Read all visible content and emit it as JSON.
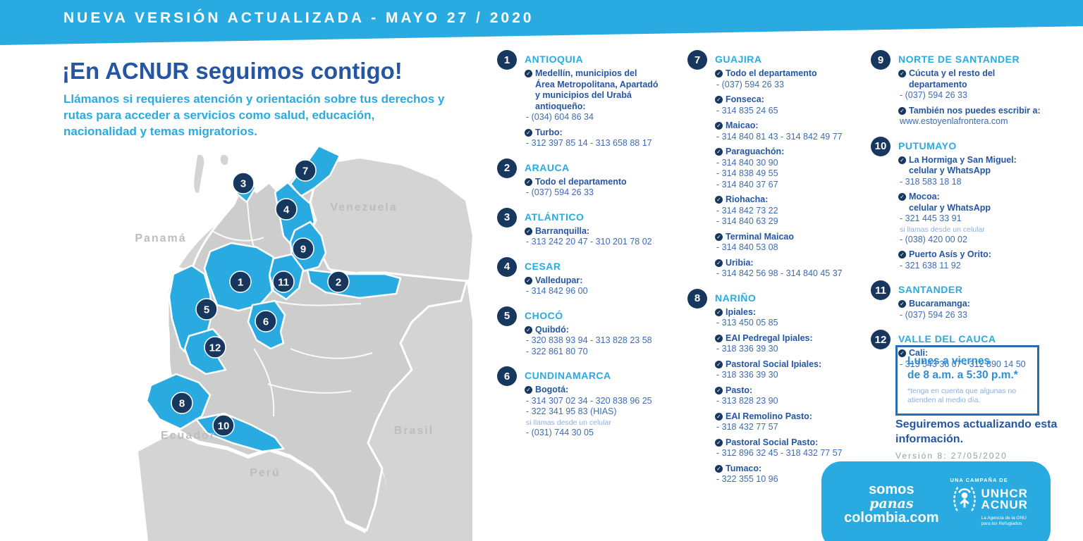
{
  "banner": {
    "text": "NUEVA VERSIÓN ACTUALIZADA - MAYO 27 / 2020"
  },
  "intro": {
    "title": "¡En ACNUR seguimos contigo!",
    "description": "Llámanos si requieres atención y orientación sobre tus derechos y rutas para acceder a servicios como salud, educación, nacionalidad y temas migratorios."
  },
  "map": {
    "country_labels": [
      "Panamá",
      "Venezuela",
      "Ecuador",
      "Perú",
      "Brasil"
    ],
    "markers": [
      "1",
      "2",
      "3",
      "4",
      "5",
      "6",
      "7",
      "8",
      "9",
      "10",
      "11",
      "12"
    ]
  },
  "directory": {
    "columns": [
      [
        {
          "num": "1",
          "name": "ANTIOQUIA",
          "entries": [
            {
              "place": "Medellín, municipios del\nÁrea Metropolitana, Apartadó\ny municipios del Urabá antioqueño:",
              "lines": [
                {
                  "text": "- (034) 604 86 34",
                  "style": "phone"
                }
              ]
            },
            {
              "place": "Turbo:",
              "lines": [
                {
                  "text": "- 312 397 85 14  - 313 658 88 17",
                  "style": "phone"
                }
              ]
            }
          ]
        },
        {
          "num": "2",
          "name": "ARAUCA",
          "entries": [
            {
              "place": "Todo el departamento",
              "lines": [
                {
                  "text": "- (037) 594 26 33",
                  "style": "phone"
                }
              ]
            }
          ]
        },
        {
          "num": "3",
          "name": "ATLÁNTICO",
          "entries": [
            {
              "place": "Barranquilla:",
              "lines": [
                {
                  "text": "- 313 242 20 47 - 310 201 78 02",
                  "style": "phone"
                }
              ]
            }
          ]
        },
        {
          "num": "4",
          "name": "CESAR",
          "entries": [
            {
              "place": "Valledupar:",
              "lines": [
                {
                  "text": "- 314 842 96 00",
                  "style": "phone"
                }
              ]
            }
          ]
        },
        {
          "num": "5",
          "name": "CHOCÓ",
          "entries": [
            {
              "place": "Quibdó:",
              "lines": [
                {
                  "text": "- 320 838 93 94 - 313 828 23 58",
                  "style": "phone"
                },
                {
                  "text": "- 322 861 80 70",
                  "style": "phone"
                }
              ]
            }
          ]
        },
        {
          "num": "6",
          "name": "CUNDINAMARCA",
          "entries": [
            {
              "place": "Bogotá:",
              "lines": [
                {
                  "text": "- 314 307 02 34 - 320 838 96 25",
                  "style": "phone"
                },
                {
                  "text": "- 322 341 95 83 (HIAS)",
                  "style": "phone"
                },
                {
                  "text": "si llamas desde un celular",
                  "style": "note"
                },
                {
                  "text": "- (031) 744 30 05",
                  "style": "phone"
                }
              ]
            }
          ]
        }
      ],
      [
        {
          "num": "7",
          "name": "GUAJIRA",
          "entries": [
            {
              "place": "Todo el departamento",
              "lines": [
                {
                  "text": "- (037) 594 26 33",
                  "style": "phone"
                }
              ]
            },
            {
              "place": "Fonseca:",
              "lines": [
                {
                  "text": "- 314 835 24 65",
                  "style": "phone"
                }
              ]
            },
            {
              "place": "Maicao:",
              "lines": [
                {
                  "text": "- 314 840 81 43 - 314 842 49 77",
                  "style": "phone"
                }
              ]
            },
            {
              "place": "Paraguachón:",
              "lines": [
                {
                  "text": "- 314 840 30 90",
                  "style": "phone"
                },
                {
                  "text": "- 314 838 49 55",
                  "style": "phone"
                },
                {
                  "text": "- 314 840 37 67",
                  "style": "phone"
                }
              ]
            },
            {
              "place": "Riohacha:",
              "lines": [
                {
                  "text": "- 314 842 73 22",
                  "style": "phone"
                },
                {
                  "text": "- 314 840 63 29",
                  "style": "phone"
                }
              ]
            },
            {
              "place": "Terminal Maicao",
              "lines": [
                {
                  "text": "- 314 840 53 08",
                  "style": "phone"
                }
              ]
            },
            {
              "place": "Uribia:",
              "lines": [
                {
                  "text": "- 314 842 56 98 - 314 840 45 37",
                  "style": "phone"
                }
              ]
            }
          ]
        },
        {
          "num": "8",
          "name": "NARIÑO",
          "entries": [
            {
              "place": "Ipiales:",
              "lines": [
                {
                  "text": "- 313 450 05 85",
                  "style": "phone"
                }
              ]
            },
            {
              "place": "EAI Pedregal Ipiales:",
              "lines": [
                {
                  "text": "- 318 336 39 30",
                  "style": "phone"
                }
              ]
            },
            {
              "place": "Pastoral Social Ipiales:",
              "lines": [
                {
                  "text": "- 318 336 39 30",
                  "style": "phone"
                }
              ]
            },
            {
              "place": "Pasto:",
              "lines": [
                {
                  "text": "- 313 828 23 90",
                  "style": "phone"
                }
              ]
            },
            {
              "place": "EAI Remolino Pasto:",
              "lines": [
                {
                  "text": "- 318 432 77 57",
                  "style": "phone"
                }
              ]
            },
            {
              "place": "Pastoral Social Pasto:",
              "lines": [
                {
                  "text": "- 312 896 32 45 - 318 432 77 57",
                  "style": "phone"
                }
              ]
            },
            {
              "place": "Tumaco:",
              "lines": [
                {
                  "text": "- 322 355 10 96",
                  "style": "phone"
                }
              ]
            }
          ]
        }
      ],
      [
        {
          "num": "9",
          "name": "NORTE DE SANTANDER",
          "entries": [
            {
              "place": "Cúcuta y el resto del departamento",
              "lines": [
                {
                  "text": "- (037) 594 26 33",
                  "style": "phone"
                }
              ]
            },
            {
              "place": "También nos puedes escribir a:",
              "lines": [
                {
                  "text": "www.estoyenlafrontera.com",
                  "style": "link"
                }
              ]
            }
          ]
        },
        {
          "num": "10",
          "name": "PUTUMAYO",
          "entries": [
            {
              "place": "La Hormiga y San Miguel:\ncelular y WhatsApp",
              "lines": [
                {
                  "text": "- 318 583 18 18",
                  "style": "phone"
                }
              ]
            },
            {
              "place": "Mocoa:\ncelular y WhatsApp",
              "lines": [
                {
                  "text": "- 321 445 33 91",
                  "style": "phone"
                },
                {
                  "text": "si llamas desde un celular",
                  "style": "note"
                },
                {
                  "text": "- (038) 420 00 02",
                  "style": "phone"
                }
              ]
            },
            {
              "place": "Puerto Asís y Orito:",
              "lines": [
                {
                  "text": "- 321 638 11 92",
                  "style": "phone"
                }
              ]
            }
          ]
        },
        {
          "num": "11",
          "name": "SANTANDER",
          "entries": [
            {
              "place": "Bucaramanga:",
              "lines": [
                {
                  "text": "- (037) 594 26 33",
                  "style": "phone"
                }
              ]
            }
          ]
        },
        {
          "num": "12",
          "name": "VALLE DEL CAUCA",
          "entries": [
            {
              "place": "Cali:",
              "lines": [
                {
                  "text": "- 313 543 36 07 - 312 890 14 50",
                  "style": "phone"
                }
              ]
            }
          ]
        }
      ]
    ]
  },
  "hours_box": {
    "line1": "Lunes a viernes",
    "line2": "de 8 a.m. a 5:30 p.m.*",
    "note": "*tenga en cuenta que algunas no atienden al medio día."
  },
  "update_note": {
    "text": "Seguiremos actualizando esta información."
  },
  "version": {
    "text": "Versión 8: 27/05/2020"
  },
  "footer": {
    "campaign_site": [
      "somos",
      "panas",
      "colombia.com"
    ],
    "campaign_of": "UNA CAMPAÑA DE",
    "org_lines": [
      "UNHCR",
      "ACNUR"
    ],
    "org_tagline": "La Agencia de la ONU\npara los Refugiados"
  },
  "colors": {
    "sky_blue": "#29ABE2",
    "navy": "#17375E",
    "dark_blue": "#2456A4",
    "mid_blue": "#3D6CB4",
    "map_gray": "#CDCDCD"
  }
}
